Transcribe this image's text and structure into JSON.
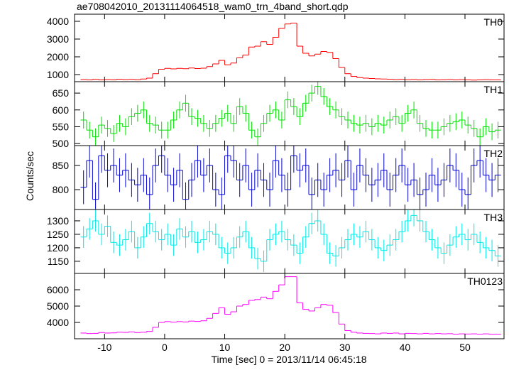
{
  "chart_data": {
    "type": "step",
    "title": "ae708042010_20131114064518_wam0_trn_4band_short.qdp",
    "xlabel": "Time [sec] 0 = 2013/11/14 06:45:18",
    "ylabel": "Counts/sec",
    "xlim": [
      -15,
      56.5
    ],
    "xticks": [
      -10,
      0,
      10,
      20,
      30,
      40,
      50
    ],
    "bin_width": 1,
    "x": [
      -13.5,
      -12.5,
      -11.5,
      -10.5,
      -9.5,
      -8.5,
      -7.5,
      -6.5,
      -5.5,
      -4.5,
      -3.5,
      -2.5,
      -1.5,
      -0.5,
      0.5,
      1.5,
      2.5,
      3.5,
      4.5,
      5.5,
      6.5,
      7.5,
      8.5,
      9.5,
      10.5,
      11.5,
      12.5,
      13.5,
      14.5,
      15.5,
      16.5,
      17.5,
      18.5,
      19.5,
      20.5,
      21.5,
      22.5,
      23.5,
      24.5,
      25.5,
      26.5,
      27.5,
      28.5,
      29.5,
      30.5,
      31.5,
      32.5,
      33.5,
      34.5,
      35.5,
      36.5,
      37.5,
      38.5,
      39.5,
      40.5,
      41.5,
      42.5,
      43.5,
      44.5,
      45.5,
      46.5,
      47.5,
      48.5,
      49.5,
      50.5,
      51.5,
      52.5,
      53.5,
      54.5,
      55.5
    ],
    "panels": [
      {
        "name": "TH0",
        "color": "#ff0000",
        "ylim": [
          600,
          4400
        ],
        "yticks": [
          1000,
          2000,
          3000,
          4000
        ],
        "values": [
          720,
          700,
          730,
          700,
          720,
          710,
          740,
          720,
          730,
          710,
          750,
          800,
          1050,
          1300,
          1350,
          1320,
          1350,
          1330,
          1370,
          1340,
          1360,
          1450,
          1600,
          1800,
          1550,
          1650,
          1950,
          2100,
          2550,
          2600,
          2850,
          2700,
          3100,
          3600,
          3850,
          3900,
          2600,
          2200,
          2050,
          2150,
          2300,
          2250,
          1900,
          1400,
          1050,
          900,
          830,
          800,
          780,
          760,
          750,
          740,
          720,
          730,
          710,
          720,
          700,
          720,
          730,
          700,
          710,
          720,
          700,
          710,
          700,
          690,
          700,
          710,
          700,
          700
        ]
      },
      {
        "name": "TH1",
        "color": "#00e000",
        "ylim": [
          494,
          684
        ],
        "yticks": [
          500,
          550,
          600,
          650
        ],
        "values": [
          570,
          540,
          520,
          555,
          545,
          530,
          560,
          550,
          580,
          590,
          600,
          560,
          555,
          540,
          540,
          570,
          600,
          620,
          580,
          575,
          560,
          545,
          560,
          575,
          590,
          560,
          610,
          590,
          540,
          520,
          560,
          590,
          600,
          570,
          630,
          610,
          580,
          620,
          650,
          670,
          640,
          610,
          600,
          580,
          570,
          560,
          555,
          560,
          550,
          560,
          555,
          570,
          580,
          560,
          590,
          600,
          560,
          545,
          540,
          540,
          550,
          560,
          565,
          570,
          555,
          545,
          520,
          550,
          535,
          540
        ],
        "errors": [
          25,
          25,
          25,
          25,
          25,
          25,
          25,
          25,
          25,
          25,
          25,
          25,
          25,
          25,
          25,
          25,
          25,
          25,
          25,
          25,
          25,
          25,
          25,
          25,
          25,
          25,
          25,
          25,
          25,
          25,
          25,
          25,
          25,
          25,
          25,
          25,
          25,
          25,
          25,
          25,
          25,
          25,
          25,
          25,
          25,
          25,
          25,
          25,
          25,
          25,
          25,
          25,
          25,
          25,
          25,
          25,
          25,
          25,
          25,
          25,
          25,
          25,
          25,
          25,
          25,
          25,
          25,
          25,
          25,
          25
        ]
      },
      {
        "name": "TH2",
        "color": "#0000d0",
        "ylim": [
          759,
          891
        ],
        "yticks": [
          800,
          850
        ],
        "values": [
          805,
          860,
          780,
          870,
          840,
          850,
          830,
          840,
          820,
          810,
          830,
          790,
          850,
          870,
          830,
          810,
          840,
          780,
          820,
          860,
          830,
          850,
          800,
          790,
          870,
          860,
          820,
          850,
          800,
          840,
          820,
          800,
          860,
          830,
          800,
          870,
          840,
          850,
          790,
          820,
          800,
          830,
          840,
          820,
          860,
          800,
          850,
          830,
          810,
          820,
          840,
          800,
          830,
          850,
          810,
          820,
          790,
          800,
          830,
          810,
          820,
          850,
          840,
          800,
          790,
          850,
          860,
          830,
          820,
          830
        ],
        "errors": [
          35,
          35,
          35,
          35,
          35,
          35,
          35,
          35,
          35,
          35,
          35,
          35,
          35,
          35,
          35,
          35,
          35,
          35,
          35,
          35,
          35,
          35,
          35,
          35,
          35,
          35,
          35,
          35,
          35,
          35,
          35,
          35,
          35,
          35,
          35,
          35,
          35,
          35,
          35,
          35,
          35,
          35,
          35,
          35,
          35,
          35,
          35,
          35,
          35,
          35,
          35,
          35,
          35,
          35,
          35,
          35,
          35,
          35,
          35,
          35,
          35,
          35,
          35,
          35,
          35,
          35,
          35,
          35,
          35,
          35
        ]
      },
      {
        "name": "TH3",
        "color": "#00e8e8",
        "ylim": [
          1105,
          1342
        ],
        "yticks": [
          1150,
          1200,
          1250,
          1300
        ],
        "values": [
          1240,
          1270,
          1300,
          1250,
          1280,
          1220,
          1210,
          1230,
          1260,
          1200,
          1240,
          1290,
          1260,
          1230,
          1250,
          1210,
          1270,
          1240,
          1260,
          1220,
          1230,
          1260,
          1250,
          1200,
          1180,
          1200,
          1240,
          1260,
          1200,
          1160,
          1150,
          1230,
          1250,
          1260,
          1230,
          1210,
          1180,
          1240,
          1290,
          1300,
          1250,
          1180,
          1170,
          1200,
          1230,
          1250,
          1240,
          1260,
          1230,
          1200,
          1190,
          1210,
          1230,
          1260,
          1300,
          1320,
          1300,
          1260,
          1230,
          1200,
          1180,
          1210,
          1240,
          1250,
          1230,
          1250,
          1220,
          1200,
          1190,
          1170
        ],
        "errors": [
          40,
          40,
          40,
          40,
          40,
          40,
          40,
          40,
          40,
          40,
          40,
          40,
          40,
          40,
          40,
          40,
          40,
          40,
          40,
          40,
          40,
          40,
          40,
          40,
          40,
          40,
          40,
          40,
          40,
          40,
          40,
          40,
          40,
          40,
          40,
          40,
          40,
          40,
          40,
          40,
          40,
          40,
          40,
          40,
          40,
          40,
          40,
          40,
          40,
          40,
          40,
          40,
          40,
          40,
          40,
          40,
          40,
          40,
          40,
          40,
          40,
          40,
          40,
          40,
          40,
          40,
          40,
          40,
          40,
          40
        ]
      },
      {
        "name": "TH0123",
        "color": "#ff00ff",
        "ylim": [
          3000,
          7000
        ],
        "yticks": [
          4000,
          5000,
          6000
        ],
        "values": [
          3350,
          3320,
          3330,
          3380,
          3350,
          3360,
          3400,
          3390,
          3420,
          3380,
          3400,
          3450,
          3700,
          4000,
          4050,
          4020,
          4050,
          4030,
          4080,
          4060,
          4100,
          4250,
          4550,
          4900,
          4500,
          4650,
          5000,
          5100,
          5350,
          5400,
          5550,
          5450,
          5900,
          6300,
          6800,
          6800,
          5200,
          4800,
          4700,
          4900,
          5100,
          5050,
          4600,
          3900,
          3500,
          3400,
          3350,
          3330,
          3320,
          3300,
          3350,
          3330,
          3350,
          3300,
          3330,
          3320,
          3300,
          3330,
          3300,
          3320,
          3300,
          3310,
          3280,
          3300,
          3290,
          3300,
          3280,
          3300,
          3270,
          3280
        ]
      }
    ]
  }
}
